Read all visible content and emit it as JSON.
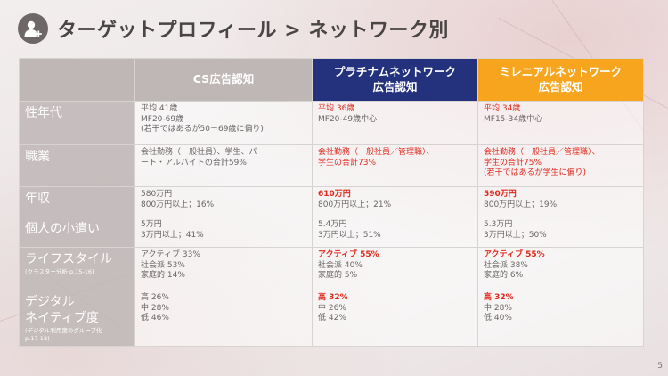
{
  "title": "ターゲットプロフィール > ネットワーク別",
  "page_number": "5",
  "columns": {
    "cs": "CS広告認知",
    "platinum": [
      "プラチナムネットワーク",
      "広告認知"
    ],
    "millennial": [
      "ミレニアルネットワーク",
      "広告認知"
    ]
  },
  "colors": {
    "platinum": "#24327e",
    "millennial": "#f7a51e",
    "highlight": "#e02a1f"
  },
  "rows": [
    {
      "label": "性年代",
      "sub": [],
      "cs": [
        "平均 41歳",
        "MF20-69歳",
        "(若干ではあるが50－69歳に偏り)"
      ],
      "platinum": [
        "平均 36歳",
        "MF20-49歳中心"
      ],
      "millennial": [
        "平均 34歳",
        "MF15-34歳中心"
      ]
    },
    {
      "label": "職業",
      "sub": [],
      "cs": [
        "会社勤務（一般社員）、学生、パ",
        "ート・アルバイトの合計59%"
      ],
      "platinum": [
        "会社勤務（一般社員／管理職）、",
        "学生の合計73%"
      ],
      "millennial": [
        "会社勤務（一般社員／管理職）、",
        "学生の合計75%",
        "(若干ではあるが学生に偏り)"
      ]
    },
    {
      "label": "年収",
      "sub": [],
      "cs": [
        "580万円",
        "800万円以上；16%"
      ],
      "platinum": [
        "610万円",
        "800万円以上；21%"
      ],
      "millennial": [
        "590万円",
        "800万円以上；19%"
      ]
    },
    {
      "label": "個人の小遣い",
      "sub": [],
      "cs": [
        "5万円",
        "3万円以上；41%"
      ],
      "platinum": [
        "5.4万円",
        "3万円以上；51%"
      ],
      "millennial": [
        "5.3万円",
        "3万円以上；50%"
      ]
    },
    {
      "label": "ライフスタイル",
      "sub": [
        "(クラスター分析 p.15-16)"
      ],
      "cs": [
        "アクティブ 33%",
        "社会派 53%",
        "家庭的 14%"
      ],
      "platinum": [
        "アクティブ 55%",
        "社会派 40%",
        "家庭的 5%"
      ],
      "millennial": [
        "アクティブ 55%",
        "社会派 38%",
        "家庭的 6%"
      ]
    },
    {
      "label": "デジタル",
      "label2": "ネイティブ度",
      "sub": [
        "(デジタル利用度のグループ化",
        "p.17-18)"
      ],
      "cs": [
        "高 26%",
        "中 28%",
        "低 46%"
      ],
      "platinum": [
        "高 32%",
        "中 26%",
        "低 42%"
      ],
      "millennial": [
        "高 32%",
        "中 28%",
        "低 40%"
      ]
    }
  ]
}
